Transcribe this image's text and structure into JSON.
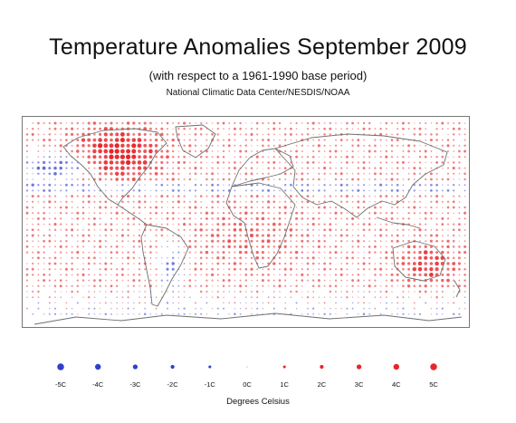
{
  "title": "Temperature Anomalies September 2009",
  "subtitle": "(with respect to a 1961-1990 base period)",
  "source": "National Climatic Data Center/NESDIS/NOAA",
  "legend": {
    "items": [
      {
        "label": "-5C",
        "value": -5
      },
      {
        "label": "-4C",
        "value": -4
      },
      {
        "label": "-3C",
        "value": -3
      },
      {
        "label": "-2C",
        "value": -2
      },
      {
        "label": "-1C",
        "value": -1
      },
      {
        "label": "0C",
        "value": 0
      },
      {
        "label": "1C",
        "value": 1
      },
      {
        "label": "2C",
        "value": 2
      },
      {
        "label": "3C",
        "value": 3
      },
      {
        "label": "4C",
        "value": 4
      },
      {
        "label": "5C",
        "value": 5
      }
    ],
    "unit_label": "Degrees Celsius"
  },
  "colors": {
    "warm": "#e8252a",
    "cool": "#2f3fd0",
    "neutral": "#c8c8c8",
    "coast": "#777777"
  }
}
